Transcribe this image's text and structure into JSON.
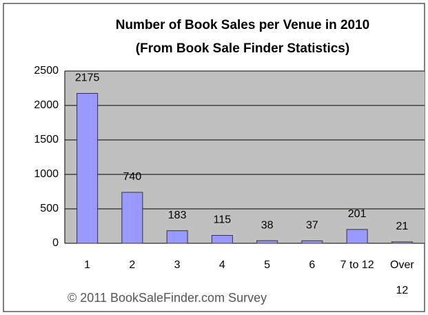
{
  "chart_data": {
    "type": "bar",
    "title": "Number of Book Sales per Venue in 2010",
    "subtitle": "(From Book Sale Finder Statistics)",
    "annotation": "© 2011 BookSaleFinder.com Survey",
    "categories": [
      "1",
      "2",
      "3",
      "4",
      "5",
      "6",
      "7 to 12",
      "Over 12"
    ],
    "values": [
      2175,
      740,
      183,
      115,
      38,
      37,
      201,
      21
    ],
    "color": "#9999ff",
    "ylim": [
      0,
      2500
    ],
    "yticks": [
      0,
      500,
      1000,
      1500,
      2000,
      2500
    ],
    "grid": true
  }
}
